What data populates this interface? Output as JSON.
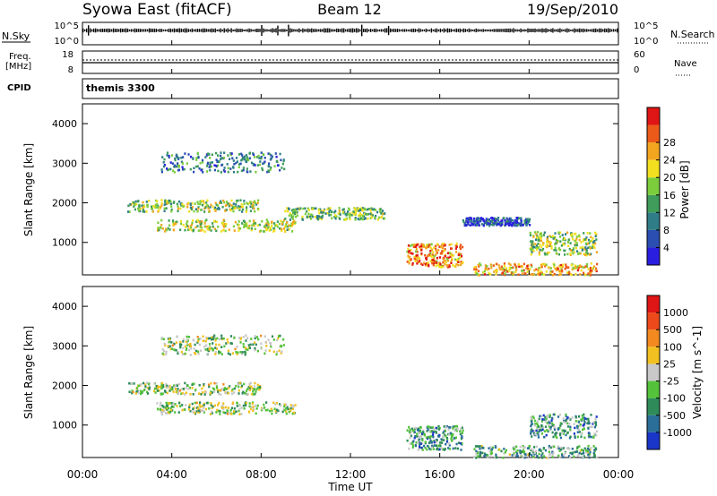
{
  "header": {
    "station": "Syowa East (fitACF)",
    "beam": "Beam 12",
    "date": "19/Sep/2010"
  },
  "top_panels": {
    "nsky_label": "N.Sky",
    "nsky_ticks": [
      "10^5",
      "10^0"
    ],
    "nsearch_label": "N.Search",
    "nsearch_ticks": [
      "10^5",
      "10^0"
    ],
    "freq_label_1": "Freq.",
    "freq_label_2": "[MHz]",
    "freq_ticks": [
      "18",
      "8"
    ],
    "nave_label": "Nave",
    "nave_ticks": [
      "60",
      "0"
    ],
    "cpid_label": "CPID",
    "cpid_value": "themis 3300"
  },
  "chart_data": [
    {
      "type": "heatmap",
      "name": "power",
      "ylabel": "Slant Range [km]",
      "xlabel": "Time UT",
      "xticks": [
        "00:00",
        "04:00",
        "08:00",
        "12:00",
        "16:00",
        "20:00",
        "00:00"
      ],
      "xlim_hours": [
        0,
        24
      ],
      "yticks": [
        "1000",
        "2000",
        "3000",
        "4000"
      ],
      "ylim": [
        180,
        4500
      ],
      "colorbar_label": "Power [dB]",
      "colorbar_ticks": [
        "4",
        "8",
        "12",
        "16",
        "20",
        "24",
        "28"
      ],
      "colorbar_colors": [
        "#2a1fe0",
        "#2a4fb0",
        "#2f7d87",
        "#3f9c5a",
        "#7ccd3c",
        "#f2e020",
        "#f2a620",
        "#ec5a1a",
        "#e01515"
      ],
      "features": [
        {
          "t": [
            3.3,
            9.5
          ],
          "r": [
            1300,
            1600
          ],
          "level": 0.55
        },
        {
          "t": [
            2.0,
            8.0
          ],
          "r": [
            1800,
            2100
          ],
          "level": 0.5
        },
        {
          "t": [
            3.5,
            9.0
          ],
          "r": [
            2800,
            3300
          ],
          "level": 0.3
        },
        {
          "t": [
            9.0,
            13.5
          ],
          "r": [
            1600,
            1900
          ],
          "level": 0.45
        },
        {
          "t": [
            14.5,
            17.0
          ],
          "r": [
            400,
            1000
          ],
          "level": 0.75
        },
        {
          "t": [
            17.0,
            20.0
          ],
          "r": [
            1450,
            1650
          ],
          "level": 0.15
        },
        {
          "t": [
            17.5,
            23.0
          ],
          "r": [
            200,
            500
          ],
          "level": 0.7
        },
        {
          "t": [
            20.0,
            23.0
          ],
          "r": [
            700,
            1300
          ],
          "level": 0.5
        }
      ]
    },
    {
      "type": "heatmap",
      "name": "velocity",
      "ylabel": "Slant Range [km]",
      "xlabel": "Time UT",
      "xticks": [
        "00:00",
        "04:00",
        "08:00",
        "12:00",
        "16:00",
        "20:00",
        "00:00"
      ],
      "xlim_hours": [
        0,
        24
      ],
      "yticks": [
        "1000",
        "2000",
        "3000",
        "4000"
      ],
      "ylim": [
        180,
        4500
      ],
      "colorbar_label": "Velocity [m s^-1]",
      "colorbar_ticks": [
        "1000",
        "500",
        "100",
        "25",
        "-25",
        "-100",
        "-500",
        "-1000"
      ],
      "colorbar_colors": [
        "#1a36c8",
        "#2a6e9a",
        "#2f8a5a",
        "#54c23a",
        "#c8c8c8",
        "#f2c020",
        "#f28a20",
        "#ec4a1a",
        "#e01515"
      ],
      "features": [
        {
          "t": [
            3.3,
            9.5
          ],
          "r": [
            1300,
            1600
          ],
          "level": 0.45
        },
        {
          "t": [
            2.0,
            8.0
          ],
          "r": [
            1800,
            2100
          ],
          "level": 0.45
        },
        {
          "t": [
            3.5,
            9.0
          ],
          "r": [
            2800,
            3300
          ],
          "level": 0.45
        },
        {
          "t": [
            14.5,
            17.0
          ],
          "r": [
            400,
            1000
          ],
          "level": 0.3
        },
        {
          "t": [
            17.5,
            23.0
          ],
          "r": [
            200,
            500
          ],
          "level": 0.35
        },
        {
          "t": [
            20.0,
            23.0
          ],
          "r": [
            700,
            1300
          ],
          "level": 0.3
        }
      ]
    }
  ]
}
